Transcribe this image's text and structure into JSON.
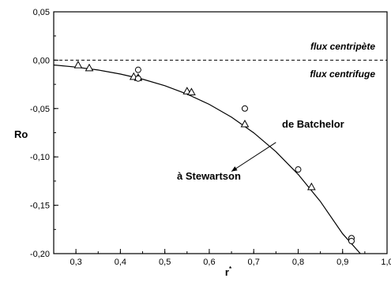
{
  "chart_data": {
    "type": "scatter",
    "xlabel": "r",
    "xlabel_superscript": "*",
    "ylabel": "Ro",
    "xlim": [
      0.25,
      1.0
    ],
    "ylim": [
      -0.2,
      0.05
    ],
    "x_ticks": [
      0.3,
      0.4,
      0.5,
      0.6,
      0.7,
      0.8,
      0.9,
      1.0
    ],
    "x_tick_labels": [
      "0,3",
      "0,4",
      "0,5",
      "0,6",
      "0,7",
      "0,8",
      "0,9",
      "1,0"
    ],
    "y_ticks": [
      0.05,
      0.0,
      -0.05,
      -0.1,
      -0.15,
      -0.2
    ],
    "y_tick_labels": [
      "0,05",
      "0,00",
      "-0,05",
      "-0,10",
      "-0,15",
      "-0,20"
    ],
    "reference_line": {
      "y": 0.0,
      "style": "dashed"
    },
    "annotations": [
      {
        "text": "flux centripète",
        "style": "italic-bold"
      },
      {
        "text": "flux centrifuge",
        "style": "italic-bold"
      },
      {
        "text": "de Batchelor",
        "style": "bold"
      },
      {
        "text": "à Stewartson",
        "style": "bold"
      }
    ],
    "series": [
      {
        "marker": "triangle",
        "x": [
          0.305,
          0.33,
          0.43,
          0.44,
          0.55,
          0.56,
          0.68,
          0.83
        ],
        "y": [
          -0.005,
          -0.008,
          -0.017,
          -0.018,
          -0.032,
          -0.033,
          -0.066,
          -0.131
        ]
      },
      {
        "marker": "circle",
        "x": [
          0.44,
          0.44,
          0.68,
          0.8,
          0.92,
          0.92
        ],
        "y": [
          -0.01,
          -0.019,
          -0.05,
          -0.113,
          -0.184,
          -0.187
        ]
      },
      {
        "marker": "line",
        "x": [
          0.25,
          0.3,
          0.35,
          0.4,
          0.45,
          0.5,
          0.55,
          0.6,
          0.65,
          0.7,
          0.75,
          0.8,
          0.85,
          0.9,
          0.94
        ],
        "y": [
          -0.005,
          -0.0072,
          -0.0102,
          -0.0143,
          -0.0196,
          -0.0264,
          -0.035,
          -0.0457,
          -0.0589,
          -0.0751,
          -0.0946,
          -0.1181,
          -0.1461,
          -0.1794,
          -0.2
        ]
      }
    ],
    "arrow": {
      "from": [
        0.75,
        -0.085
      ],
      "to": [
        0.65,
        -0.115
      ]
    }
  }
}
